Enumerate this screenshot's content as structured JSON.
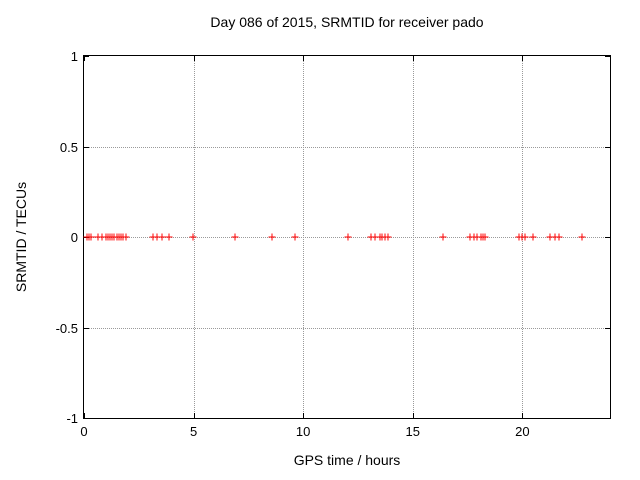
{
  "chart_data": {
    "type": "scatter",
    "title": "Day 086 of 2015, SRMTID for receiver pado",
    "xlabel": "GPS time / hours",
    "ylabel": "SRMTID / TECUs",
    "xlim": [
      0,
      24
    ],
    "ylim": [
      -1,
      1
    ],
    "xticks": [
      0,
      5,
      10,
      15,
      20
    ],
    "xtick_labels": [
      "0",
      "5",
      "10",
      "15",
      "20"
    ],
    "yticks": [
      1,
      0.5,
      0,
      -0.5,
      -1
    ],
    "ytick_labels": [
      "1",
      "0.5",
      "0",
      "-0.5",
      "-1"
    ],
    "grid": true,
    "legend": "none",
    "marker": "plus",
    "marker_color": "#ff0000",
    "axis_color": "#000000",
    "grid_color": "#9a9a9a",
    "background_color": "#ffffff",
    "series": [
      {
        "name": "SRMTID",
        "x": [
          0.12,
          0.21,
          0.32,
          0.64,
          0.82,
          1.0,
          1.1,
          1.19,
          1.28,
          1.37,
          1.51,
          1.6,
          1.69,
          1.78,
          1.92,
          3.13,
          3.34,
          3.54,
          3.9,
          4.99,
          6.89,
          8.56,
          9.63,
          12.06,
          13.09,
          13.26,
          13.5,
          13.6,
          13.72,
          13.87,
          16.39,
          17.61,
          17.79,
          17.94,
          18.11,
          18.22,
          18.31,
          19.85,
          19.98,
          20.1,
          20.5,
          21.26,
          21.49,
          21.68,
          22.7
        ],
        "y": [
          0,
          0,
          0,
          0,
          0,
          0,
          0,
          0,
          0,
          0,
          0,
          0,
          0,
          0,
          0,
          0,
          0,
          0,
          0,
          0,
          0,
          0,
          0,
          0,
          0,
          0,
          0,
          0,
          0,
          0,
          0,
          0,
          0,
          0,
          0,
          0,
          0,
          0,
          0,
          0,
          0,
          0,
          0,
          0,
          0
        ]
      }
    ]
  }
}
